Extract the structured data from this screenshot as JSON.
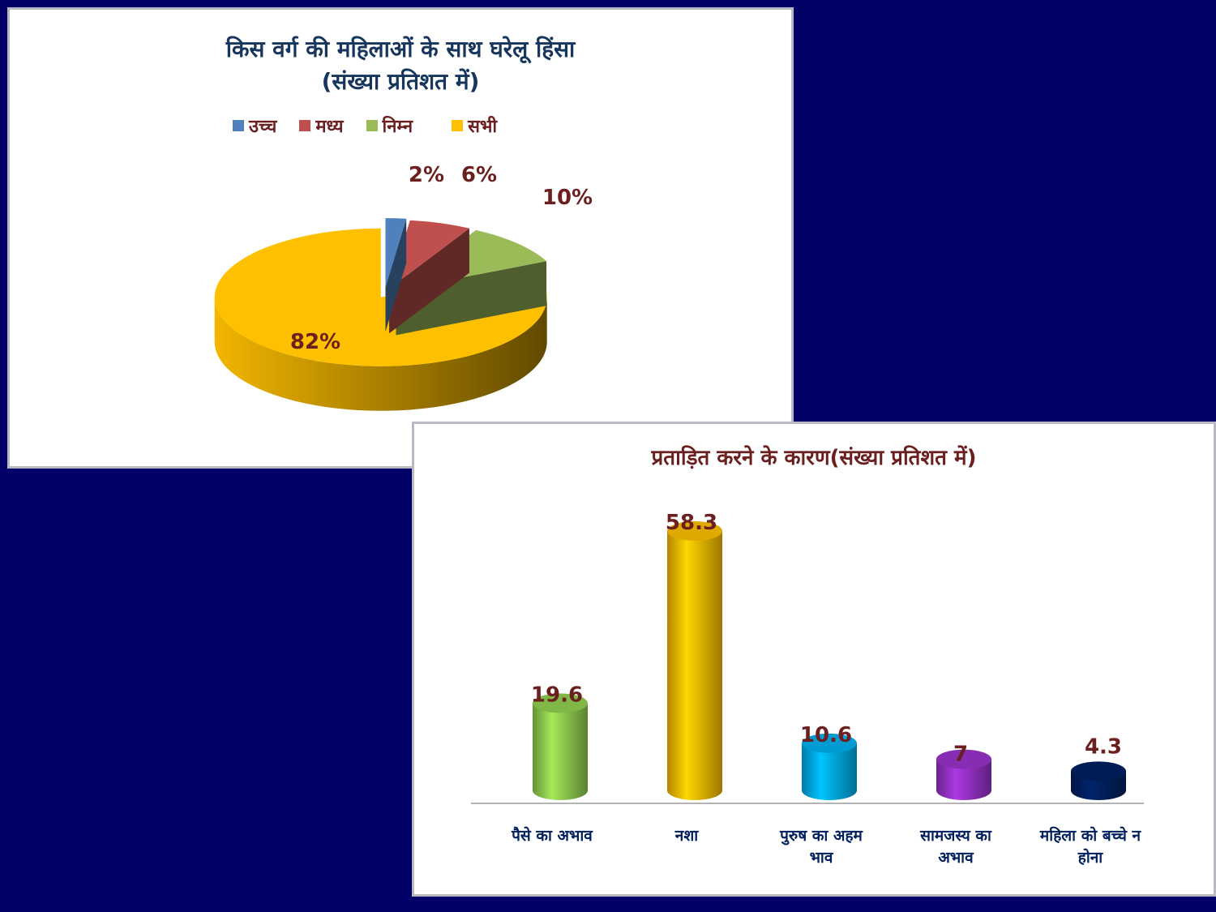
{
  "pie": {
    "title_line1": "किस वर्ग की महिलाओं के साथ घरेलू हिंसा",
    "title_line2": "(संख्या प्रतिशत में)",
    "chart_data": {
      "type": "pie",
      "title": "किस वर्ग की महिलाओं के साथ घरेलू हिंसा (संख्या प्रतिशत में)",
      "categories": [
        "उच्च",
        "मध्य",
        "निम्न",
        "सभी"
      ],
      "values": [
        2,
        6,
        10,
        82
      ],
      "labels": [
        "2%",
        "6%",
        "10%",
        "82%"
      ],
      "colors": [
        "#4f81bd",
        "#c0504d",
        "#9bbb59",
        "#ffc000"
      ],
      "legend": "top"
    }
  },
  "bar": {
    "title": "प्रताड़ित करने के कारण(संख्या प्रतिशत में)",
    "chart_data": {
      "type": "bar",
      "title": "प्रताड़ित करने के कारण(संख्या प्रतिशत में)",
      "categories": [
        [
          "पैसे का अभाव"
        ],
        [
          "नशा"
        ],
        [
          "पुरुष का अहम",
          "भाव"
        ],
        [
          "सामजस्य का",
          "अभाव"
        ],
        [
          "महिला को बच्चे न",
          "होना"
        ]
      ],
      "values": [
        19.6,
        58.3,
        10.6,
        7,
        4.3
      ],
      "labels": [
        "19.6",
        "58.3",
        "10.6",
        "7",
        "4.3"
      ],
      "colors": [
        "#92d050",
        "#ffc000",
        "#00b0f0",
        "#9933cc",
        "#002060"
      ],
      "ylim": [
        0,
        58.3
      ],
      "grid": false
    }
  }
}
